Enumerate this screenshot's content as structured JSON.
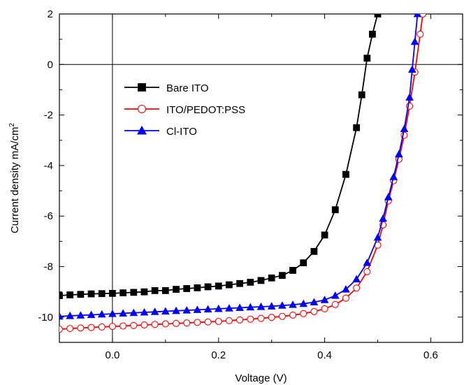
{
  "chart_data": {
    "type": "line",
    "xlabel": "Voltage (V)",
    "ylabel_main": "Current density mA/cm",
    "ylabel_sup": "2",
    "xlim": [
      -0.1,
      0.66
    ],
    "ylim": [
      -11,
      2
    ],
    "x_ticks": [
      0.0,
      0.2,
      0.4,
      0.6
    ],
    "x_tick_labels": [
      "0.0",
      "0.2",
      "0.4",
      "0.6"
    ],
    "y_ticks": [
      2,
      0,
      -2,
      -4,
      -6,
      -8,
      -10
    ],
    "y_tick_labels": [
      "2",
      "0",
      "-2",
      "-4",
      "-6",
      "-8",
      "-10"
    ],
    "grid": false,
    "reference_lines": {
      "x": 0,
      "y": 0
    },
    "legend_placement": "upper-left inside",
    "series": [
      {
        "name": "Bare ITO",
        "color": "#000000",
        "marker": "square-filled",
        "points": [
          [
            -0.1,
            -9.15
          ],
          [
            -0.08,
            -9.12
          ],
          [
            -0.06,
            -9.1
          ],
          [
            -0.04,
            -9.08
          ],
          [
            -0.02,
            -9.07
          ],
          [
            0.0,
            -9.06
          ],
          [
            0.02,
            -9.04
          ],
          [
            0.04,
            -9.02
          ],
          [
            0.06,
            -9.0
          ],
          [
            0.08,
            -8.95
          ],
          [
            0.1,
            -8.95
          ],
          [
            0.12,
            -8.9
          ],
          [
            0.14,
            -8.87
          ],
          [
            0.16,
            -8.84
          ],
          [
            0.18,
            -8.8
          ],
          [
            0.2,
            -8.77
          ],
          [
            0.22,
            -8.72
          ],
          [
            0.24,
            -8.67
          ],
          [
            0.26,
            -8.62
          ],
          [
            0.28,
            -8.55
          ],
          [
            0.3,
            -8.45
          ],
          [
            0.32,
            -8.35
          ],
          [
            0.34,
            -8.15
          ],
          [
            0.36,
            -7.85
          ],
          [
            0.38,
            -7.4
          ],
          [
            0.4,
            -6.75
          ],
          [
            0.42,
            -5.75
          ],
          [
            0.44,
            -4.35
          ],
          [
            0.46,
            -2.5
          ],
          [
            0.47,
            -1.2
          ],
          [
            0.48,
            0.25
          ],
          [
            0.49,
            1.2
          ],
          [
            0.5,
            2.0
          ]
        ]
      },
      {
        "name": "ITO/PEDOT:PSS",
        "color": "#ff0000",
        "marker": "circle-open",
        "points": [
          [
            -0.1,
            -10.48
          ],
          [
            -0.08,
            -10.45
          ],
          [
            -0.06,
            -10.43
          ],
          [
            -0.04,
            -10.41
          ],
          [
            -0.02,
            -10.39
          ],
          [
            0.0,
            -10.37
          ],
          [
            0.02,
            -10.35
          ],
          [
            0.04,
            -10.33
          ],
          [
            0.06,
            -10.31
          ],
          [
            0.08,
            -10.29
          ],
          [
            0.1,
            -10.27
          ],
          [
            0.12,
            -10.25
          ],
          [
            0.14,
            -10.23
          ],
          [
            0.16,
            -10.21
          ],
          [
            0.18,
            -10.19
          ],
          [
            0.2,
            -10.17
          ],
          [
            0.22,
            -10.14
          ],
          [
            0.24,
            -10.11
          ],
          [
            0.26,
            -10.08
          ],
          [
            0.28,
            -10.05
          ],
          [
            0.3,
            -10.01
          ],
          [
            0.32,
            -9.97
          ],
          [
            0.34,
            -9.92
          ],
          [
            0.36,
            -9.86
          ],
          [
            0.38,
            -9.78
          ],
          [
            0.4,
            -9.67
          ],
          [
            0.42,
            -9.5
          ],
          [
            0.44,
            -9.25
          ],
          [
            0.46,
            -8.85
          ],
          [
            0.48,
            -8.2
          ],
          [
            0.5,
            -7.15
          ],
          [
            0.51,
            -6.35
          ],
          [
            0.52,
            -5.4
          ],
          [
            0.53,
            -4.6
          ],
          [
            0.54,
            -3.75
          ],
          [
            0.55,
            -2.8
          ],
          [
            0.56,
            -1.65
          ],
          [
            0.57,
            -0.3
          ],
          [
            0.58,
            1.2
          ],
          [
            0.585,
            2.0
          ]
        ]
      },
      {
        "name": "Cl-ITO",
        "color": "#0000ff",
        "marker": "triangle-filled",
        "points": [
          [
            -0.1,
            -9.97
          ],
          [
            -0.08,
            -9.95
          ],
          [
            -0.06,
            -9.93
          ],
          [
            -0.04,
            -9.91
          ],
          [
            -0.02,
            -9.89
          ],
          [
            0.0,
            -9.87
          ],
          [
            0.02,
            -9.85
          ],
          [
            0.04,
            -9.83
          ],
          [
            0.06,
            -9.81
          ],
          [
            0.08,
            -9.79
          ],
          [
            0.1,
            -9.77
          ],
          [
            0.12,
            -9.75
          ],
          [
            0.14,
            -9.73
          ],
          [
            0.16,
            -9.71
          ],
          [
            0.18,
            -9.69
          ],
          [
            0.2,
            -9.67
          ],
          [
            0.22,
            -9.65
          ],
          [
            0.24,
            -9.63
          ],
          [
            0.26,
            -9.61
          ],
          [
            0.28,
            -9.59
          ],
          [
            0.3,
            -9.57
          ],
          [
            0.32,
            -9.54
          ],
          [
            0.34,
            -9.51
          ],
          [
            0.36,
            -9.47
          ],
          [
            0.38,
            -9.41
          ],
          [
            0.4,
            -9.32
          ],
          [
            0.42,
            -9.15
          ],
          [
            0.44,
            -8.9
          ],
          [
            0.46,
            -8.5
          ],
          [
            0.48,
            -7.85
          ],
          [
            0.5,
            -6.85
          ],
          [
            0.51,
            -6.1
          ],
          [
            0.52,
            -5.25
          ],
          [
            0.53,
            -4.45
          ],
          [
            0.54,
            -3.55
          ],
          [
            0.55,
            -2.55
          ],
          [
            0.56,
            -1.3
          ],
          [
            0.565,
            -0.2
          ],
          [
            0.57,
            0.9
          ],
          [
            0.575,
            2.0
          ]
        ]
      }
    ]
  }
}
